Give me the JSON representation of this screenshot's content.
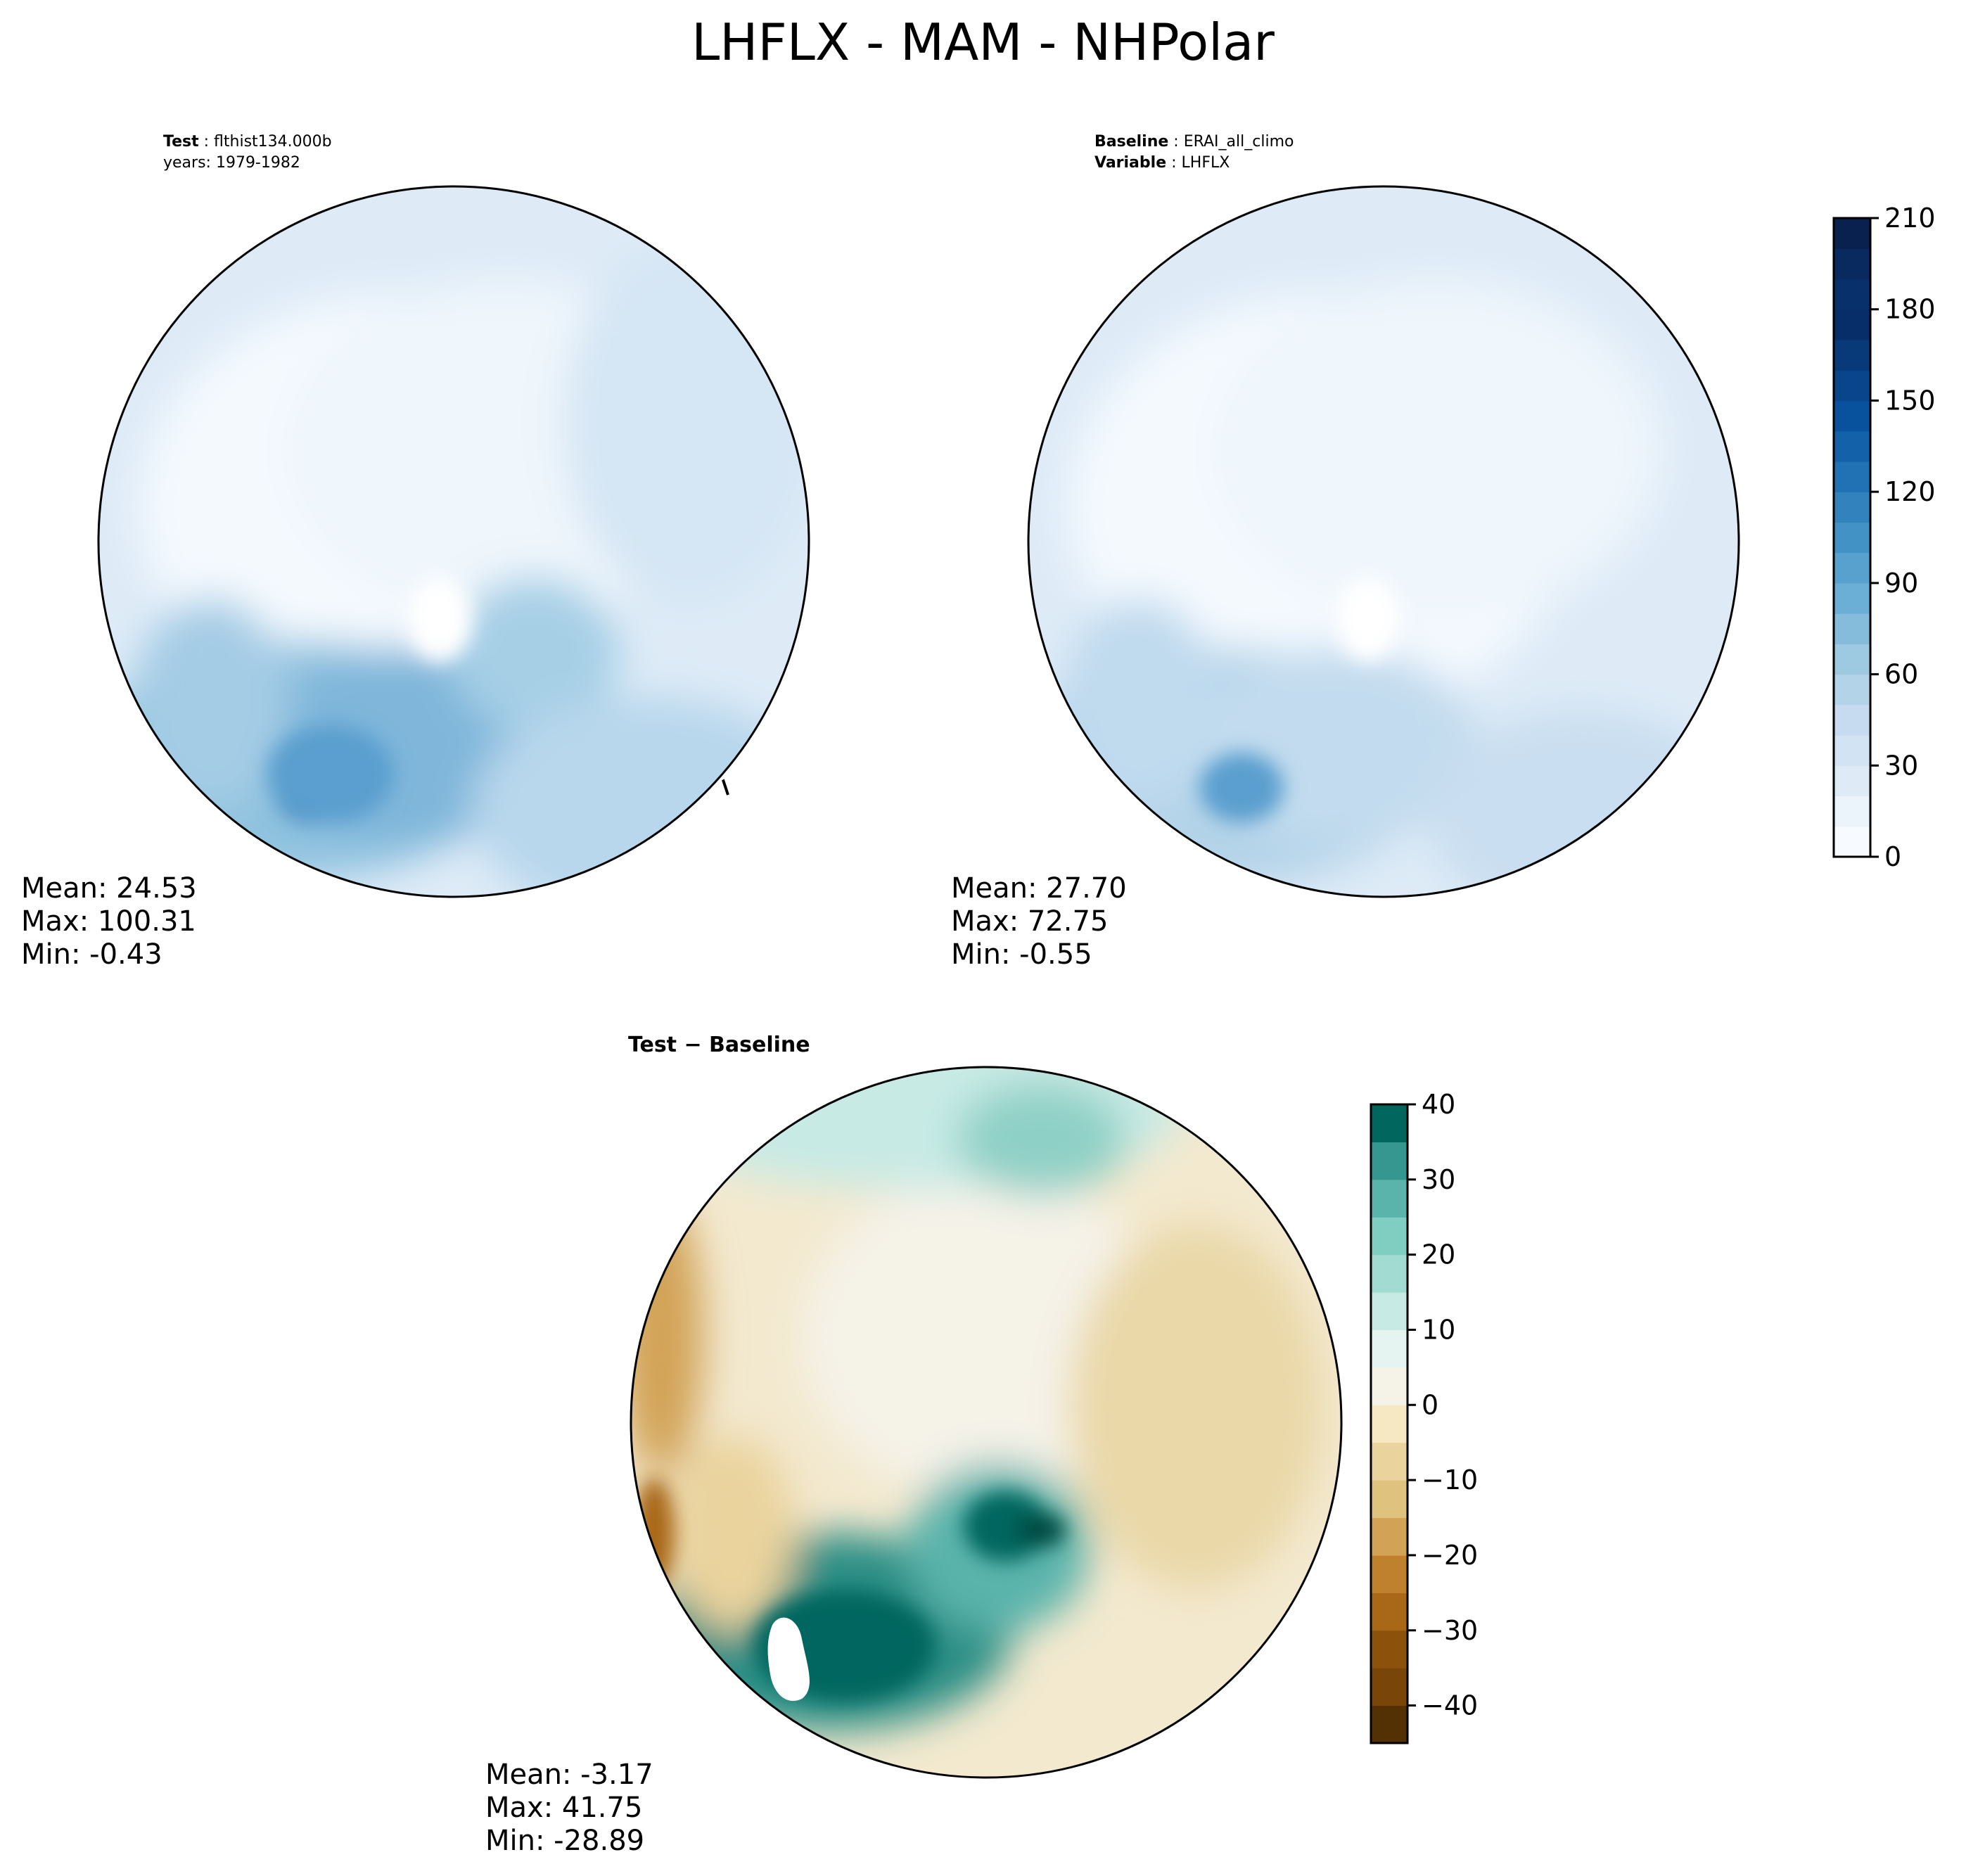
{
  "title": "LHFLX - MAM - NHPolar",
  "panels": [
    {
      "header": [
        {
          "key": "Test",
          "value": "flthist134.000b"
        },
        {
          "key": "",
          "value": "years: 1979-1982"
        }
      ],
      "stats": {
        "mean": "Mean: 24.53",
        "max": "Max: 100.31",
        "min": "Min: -0.43"
      }
    },
    {
      "header": [
        {
          "key": "Baseline",
          "value": "ERAI_all_climo"
        },
        {
          "key": "Variable",
          "value": "LHFLX"
        }
      ],
      "stats": {
        "mean": "Mean: 27.70",
        "max": "Max: 72.75",
        "min": "Min: -0.55"
      }
    },
    {
      "header": [
        {
          "key": "Test − Baseline",
          "value": ""
        }
      ],
      "stats": {
        "mean": "Mean: -3.17",
        "max": "Max: 41.75",
        "min": "Min: -28.89"
      }
    }
  ],
  "colorbars": [
    {
      "name": "field",
      "range": [
        0,
        210
      ],
      "ticks": [
        "0",
        "30",
        "60",
        "90",
        "120",
        "150",
        "180",
        "210"
      ],
      "tick_values": [
        0,
        30,
        60,
        90,
        120,
        150,
        180,
        210
      ],
      "levels": [
        0,
        10,
        20,
        30,
        40,
        50,
        60,
        70,
        80,
        90,
        100,
        110,
        120,
        130,
        140,
        150,
        160,
        170,
        180,
        190,
        200,
        210
      ],
      "colors": [
        "#f7fbff",
        "#ebf3fb",
        "#deebf7",
        "#d2e3f3",
        "#c6dbef",
        "#b3d3e8",
        "#9ecae1",
        "#85bcdc",
        "#6baed6",
        "#58a1cf",
        "#4292c6",
        "#3282be",
        "#2171b5",
        "#1361a9",
        "#08519c",
        "#08458a",
        "#083979",
        "#082e6a",
        "#08306b",
        "#082a5e",
        "#08214f"
      ]
    },
    {
      "name": "difference",
      "range": [
        -45,
        40
      ],
      "ticks": [
        "−40",
        "−30",
        "−20",
        "−10",
        "0",
        "10",
        "20",
        "30",
        "40"
      ],
      "tick_values": [
        -40,
        -30,
        -20,
        -10,
        0,
        10,
        20,
        30,
        40
      ],
      "levels": [
        -45,
        -40,
        -35,
        -30,
        -25,
        -20,
        -15,
        -10,
        -5,
        0,
        5,
        10,
        15,
        20,
        25,
        30,
        35,
        40
      ],
      "colors": [
        "#543005",
        "#7a4508",
        "#8c510a",
        "#a86818",
        "#bf812d",
        "#d2a356",
        "#dfc27d",
        "#ead39d",
        "#f6e8c3",
        "#f5f2e8",
        "#e6f4f1",
        "#c7eae5",
        "#a1dbd1",
        "#80cdc1",
        "#5ab4ac",
        "#35978f",
        "#01665e",
        "#004b43"
      ]
    }
  ]
}
